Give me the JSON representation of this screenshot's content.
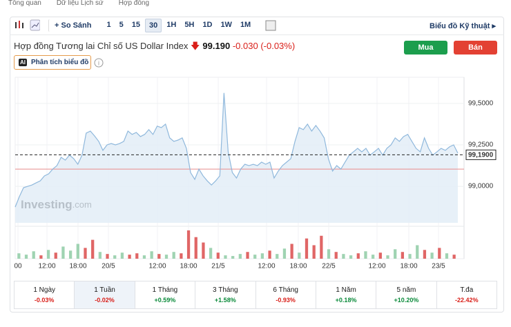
{
  "nav": [
    "Tổng quan",
    "Dữ liệu Lịch sử",
    "Hợp đồng"
  ],
  "toolbar": {
    "compare": "So Sánh",
    "intervals": [
      "1",
      "5",
      "15",
      "30",
      "1H",
      "5H",
      "1D",
      "1W",
      "1M"
    ],
    "selected": 3,
    "technical": "Biểu đồ Kỹ thuật"
  },
  "header": {
    "title": "Hợp đồng Tương lai Chỉ số US Dollar Index",
    "price": "99.190",
    "change": "-0.030",
    "change_pct": "(-0.03%)",
    "buy": "Mua",
    "sell": "Bán",
    "ai_badge": "AI",
    "analysis": "Phân tích biểu đồ"
  },
  "chart_data": {
    "type": "line",
    "color": "#8fb8dc",
    "ylim": [
      98.78,
      99.645
    ],
    "yticks": [
      {
        "value": 99.5,
        "label": "99,5000"
      },
      {
        "value": 99.25,
        "label": "99,2500"
      },
      {
        "value": 99.0,
        "label": "99,0000"
      }
    ],
    "current": {
      "value": 99.19,
      "label": "99,1900"
    },
    "reference": 99.104,
    "reference_color": "#e88a8a",
    "watermark": [
      "Investing",
      ".com"
    ],
    "xlabels": [
      "00",
      "12:00",
      "18:00",
      "20/5",
      "12:00",
      "18:00",
      "21/5",
      "12:00",
      "18:00",
      "22/5",
      "12:00",
      "18:00",
      "23/5"
    ],
    "values": [
      98.875,
      98.938,
      98.992,
      99.0,
      99.008,
      99.021,
      99.033,
      99.063,
      99.075,
      99.104,
      99.125,
      99.175,
      99.158,
      99.188,
      99.167,
      99.133,
      99.188,
      99.321,
      99.333,
      99.304,
      99.271,
      99.217,
      99.25,
      99.258,
      99.25,
      99.258,
      99.271,
      99.333,
      99.313,
      99.325,
      99.3,
      99.313,
      99.342,
      99.313,
      99.363,
      99.354,
      99.375,
      99.292,
      99.271,
      99.279,
      99.292,
      99.229,
      99.083,
      99.042,
      99.104,
      99.063,
      99.033,
      99.008,
      99.033,
      99.063,
      99.563,
      99.208,
      99.083,
      99.05,
      99.104,
      99.133,
      99.125,
      99.133,
      99.125,
      99.146,
      99.133,
      99.146,
      99.05,
      99.092,
      99.125,
      99.146,
      99.167,
      99.271,
      99.354,
      99.342,
      99.375,
      99.333,
      99.367,
      99.333,
      99.292,
      99.167,
      99.092,
      99.125,
      99.104,
      99.146,
      99.188,
      99.208,
      99.229,
      99.208,
      99.229,
      99.188,
      99.208,
      99.229,
      99.188,
      99.229,
      99.25,
      99.292,
      99.271,
      99.3,
      99.313,
      99.271,
      99.229,
      99.208,
      99.292,
      99.229,
      99.188,
      99.208,
      99.229,
      99.217,
      99.238,
      99.25,
      99.2
    ],
    "volume": {
      "values": [
        8,
        6,
        11,
        5,
        13,
        9,
        18,
        12,
        22,
        16,
        28,
        10,
        7,
        5,
        9,
        6,
        8,
        5,
        11,
        7,
        6,
        10,
        8,
        42,
        32,
        24,
        16,
        9,
        5,
        4,
        7,
        10,
        6,
        8,
        12,
        7,
        15,
        22,
        9,
        30,
        20,
        34,
        14,
        10,
        7,
        5,
        8,
        11,
        6,
        9,
        5,
        14,
        10,
        7,
        20,
        13,
        9,
        16,
        8,
        6
      ],
      "colors": [
        "#9fd3b2",
        "#9fd3b2",
        "#9fd3b2",
        "#e06666",
        "#9fd3b2",
        "#e06666",
        "#9fd3b2",
        "#9fd3b2",
        "#9fd3b2",
        "#e06666",
        "#e06666",
        "#9fd3b2",
        "#e06666",
        "#9fd3b2",
        "#9fd3b2",
        "#e06666",
        "#e06666",
        "#9fd3b2",
        "#9fd3b2",
        "#e06666",
        "#9fd3b2",
        "#9fd3b2",
        "#e06666",
        "#e06666",
        "#e06666",
        "#e06666",
        "#9fd3b2",
        "#e06666",
        "#9fd3b2",
        "#9fd3b2",
        "#9fd3b2",
        "#e06666",
        "#9fd3b2",
        "#9fd3b2",
        "#e06666",
        "#9fd3b2",
        "#9fd3b2",
        "#e06666",
        "#9fd3b2",
        "#e06666",
        "#e06666",
        "#e06666",
        "#9fd3b2",
        "#e06666",
        "#9fd3b2",
        "#9fd3b2",
        "#e06666",
        "#9fd3b2",
        "#9fd3b2",
        "#e06666",
        "#9fd3b2",
        "#9fd3b2",
        "#e06666",
        "#9fd3b2",
        "#9fd3b2",
        "#e06666",
        "#9fd3b2",
        "#e06666",
        "#9fd3b2",
        "#e06666"
      ]
    }
  },
  "periods": {
    "selected": 1,
    "items": [
      {
        "label": "1 Ngày",
        "change": "-0.03%"
      },
      {
        "label": "1 Tuần",
        "change": "-0.02%"
      },
      {
        "label": "1 Tháng",
        "change": "+0.59%"
      },
      {
        "label": "3 Tháng",
        "change": "+1.58%"
      },
      {
        "label": "6 Tháng",
        "change": "-0.93%"
      },
      {
        "label": "1 Năm",
        "change": "+0.18%"
      },
      {
        "label": "5 năm",
        "change": "+10.20%"
      },
      {
        "label": "T.đa",
        "change": "-22.42%"
      }
    ]
  }
}
